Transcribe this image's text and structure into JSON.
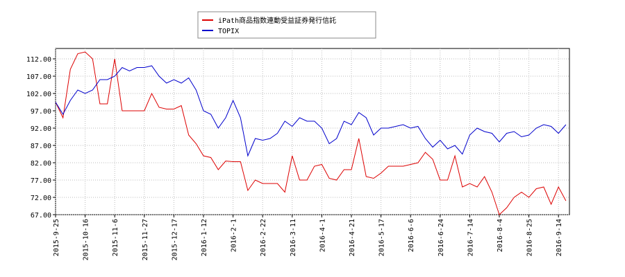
{
  "chart_data": {
    "type": "line",
    "categories": [
      "2015-9-25",
      null,
      null,
      null,
      "2015-10-16",
      null,
      null,
      null,
      "2015-11-6",
      null,
      null,
      null,
      "2015-11-27",
      null,
      null,
      null,
      "2015-12-17",
      null,
      null,
      null,
      "2016-1-12",
      null,
      null,
      null,
      "2016-2-1",
      null,
      null,
      null,
      "2016-2-22",
      null,
      null,
      null,
      "2016-3-11",
      null,
      null,
      null,
      "2016-4-1",
      null,
      null,
      null,
      "2016-4-21",
      null,
      null,
      null,
      "2016-5-17",
      null,
      null,
      null,
      "2016-6-6",
      null,
      null,
      null,
      "2016-6-24",
      null,
      null,
      null,
      "2016-7-14",
      null,
      null,
      null,
      "2016-8-4",
      null,
      null,
      null,
      "2016-8-25",
      null,
      null,
      null,
      "2016-9-14",
      null
    ],
    "series": [
      {
        "name": "iPath商品指数連動受益証券発行信託",
        "color": "#dd0000",
        "values": [
          99.5,
          95,
          109,
          113.5,
          114,
          112,
          99,
          99,
          112,
          97,
          97,
          97,
          97,
          102,
          98,
          97.5,
          97.5,
          98.5,
          90,
          87.5,
          84,
          83.5,
          80,
          82.5,
          82.3,
          82.3,
          74,
          77,
          76,
          76,
          76,
          73.5,
          84,
          77,
          77,
          81,
          81.5,
          77.5,
          77,
          80,
          80,
          89,
          78,
          77.5,
          79,
          81,
          81,
          81,
          81.5,
          82,
          85,
          83,
          77,
          77,
          84,
          75,
          76,
          75,
          78,
          73.5,
          67,
          69,
          72,
          73.5,
          72,
          74.5,
          75,
          70,
          75,
          71
        ]
      },
      {
        "name": "TOPIX",
        "color": "#0000cc",
        "values": [
          99.5,
          96,
          100,
          103,
          102,
          103,
          106,
          106,
          107,
          109.5,
          108.5,
          109.5,
          109.5,
          110,
          107,
          105,
          106,
          105,
          106.5,
          103,
          97,
          96,
          92,
          95,
          100,
          95,
          84,
          89,
          88.5,
          89,
          90.5,
          94,
          92.5,
          95,
          94,
          94,
          92,
          87.5,
          89,
          94,
          93,
          96.5,
          95,
          90,
          92,
          92,
          92.5,
          93,
          92,
          92.5,
          89,
          86.5,
          88.5,
          86,
          87,
          84.5,
          90,
          92,
          91,
          90.5,
          88,
          90.5,
          91,
          89.5,
          90,
          92,
          93,
          92.5,
          90.5,
          93
        ]
      }
    ],
    "ylim": [
      67,
      115
    ],
    "yticks": [
      {
        "value": 67,
        "label": "67.00"
      },
      {
        "value": 72,
        "label": "72.00"
      },
      {
        "value": 77,
        "label": "77.00"
      },
      {
        "value": 82,
        "label": "82.00"
      },
      {
        "value": 87,
        "label": "87.00"
      },
      {
        "value": 92,
        "label": "92.00"
      },
      {
        "value": 97,
        "label": "97.00"
      },
      {
        "value": 102,
        "label": "102.00"
      },
      {
        "value": 107,
        "label": "107.00"
      },
      {
        "value": 112,
        "label": "112.00"
      }
    ],
    "grid": true
  }
}
